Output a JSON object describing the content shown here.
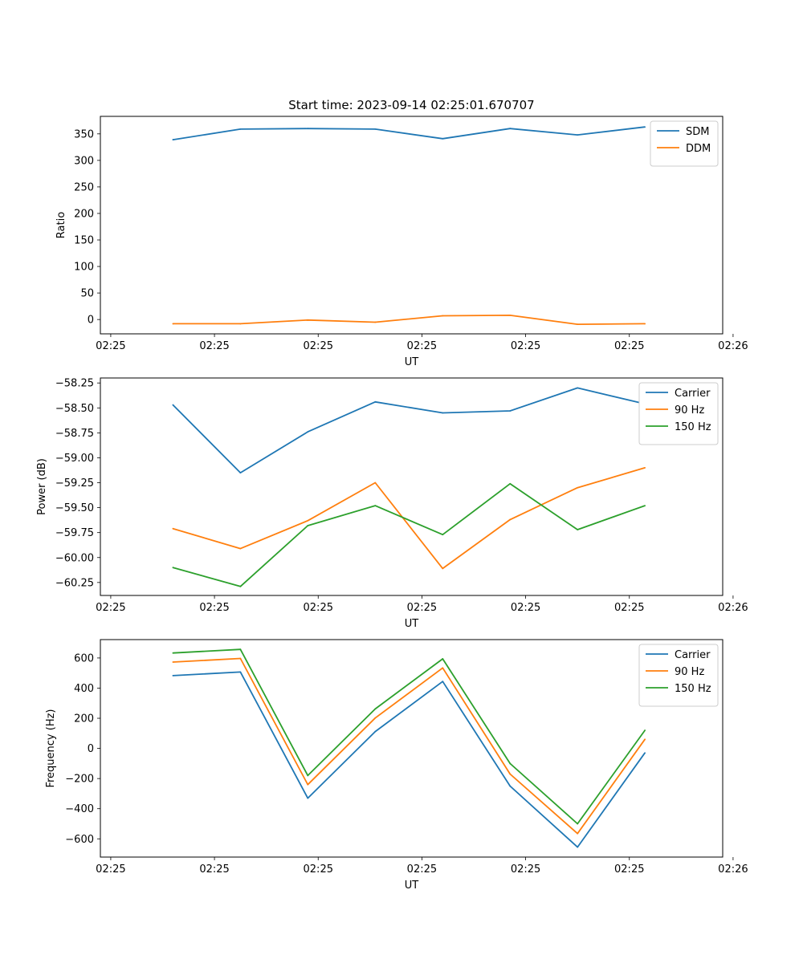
{
  "figure": {
    "title": "Start time: 2023-09-14 02:25:01.670707"
  },
  "chart_data": [
    {
      "type": "line",
      "title": "Start time: 2023-09-14 02:25:01.670707",
      "xlabel": "UT",
      "ylabel": "Ratio",
      "x": [
        0.7,
        1.35,
        2.0,
        2.65,
        3.3,
        3.95,
        4.6,
        5.25
      ],
      "xlim": [
        0,
        6.0
      ],
      "xticks": [
        0.1,
        1.1,
        2.1,
        3.1,
        4.1,
        5.1,
        6.1
      ],
      "xtick_labels": [
        "02:25",
        "02:25",
        "02:25",
        "02:25",
        "02:25",
        "02:25",
        "02:26"
      ],
      "ylim": [
        -27,
        383
      ],
      "yticks": [
        0,
        50,
        100,
        150,
        200,
        250,
        300,
        350
      ],
      "ytick_labels": [
        "0",
        "50",
        "100",
        "150",
        "200",
        "250",
        "300",
        "350"
      ],
      "legend": "upper right",
      "series": [
        {
          "name": "SDM",
          "color": "#1f77b4",
          "values": [
            339,
            359,
            360,
            359,
            341,
            360,
            348,
            363
          ]
        },
        {
          "name": "DDM",
          "color": "#ff7f0e",
          "values": [
            -8,
            -8,
            -1,
            -5,
            7,
            8,
            -9,
            -8
          ]
        }
      ]
    },
    {
      "type": "line",
      "title": "",
      "xlabel": "UT",
      "ylabel": "Power (dB)",
      "x": [
        0.7,
        1.35,
        2.0,
        2.65,
        3.3,
        3.95,
        4.6,
        5.25
      ],
      "xlim": [
        0,
        6.0
      ],
      "xticks": [
        0.1,
        1.1,
        2.1,
        3.1,
        4.1,
        5.1,
        6.1
      ],
      "xtick_labels": [
        "02:25",
        "02:25",
        "02:25",
        "02:25",
        "02:25",
        "02:25",
        "02:26"
      ],
      "ylim": [
        -60.38,
        -58.2
      ],
      "yticks": [
        -60.25,
        -60.0,
        -59.75,
        -59.5,
        -59.25,
        -59.0,
        -58.75,
        -58.5,
        -58.25
      ],
      "ytick_labels": [
        "−60.25",
        "−60.00",
        "−59.75",
        "−59.50",
        "−59.25",
        "−59.00",
        "−58.75",
        "−58.50",
        "−58.25"
      ],
      "legend": "upper right",
      "series": [
        {
          "name": "Carrier",
          "color": "#1f77b4",
          "values": [
            -58.47,
            -59.15,
            -58.74,
            -58.44,
            -58.55,
            -58.53,
            -58.3,
            -58.46
          ]
        },
        {
          "name": "90 Hz",
          "color": "#ff7f0e",
          "values": [
            -59.71,
            -59.91,
            -59.63,
            -59.25,
            -60.11,
            -59.62,
            -59.3,
            -59.1
          ]
        },
        {
          "name": "150 Hz",
          "color": "#2ca02c",
          "values": [
            -60.1,
            -60.29,
            -59.68,
            -59.48,
            -59.77,
            -59.26,
            -59.72,
            -59.48
          ]
        }
      ]
    },
    {
      "type": "line",
      "title": "",
      "xlabel": "UT",
      "ylabel": "Frequency (Hz)",
      "x": [
        0.7,
        1.35,
        2.0,
        2.65,
        3.3,
        3.95,
        4.6,
        5.25
      ],
      "xlim": [
        0,
        6.0
      ],
      "xticks": [
        0.1,
        1.1,
        2.1,
        3.1,
        4.1,
        5.1,
        6.1
      ],
      "xtick_labels": [
        "02:25",
        "02:25",
        "02:25",
        "02:25",
        "02:25",
        "02:25",
        "02:26"
      ],
      "ylim": [
        -721,
        722
      ],
      "yticks": [
        -600,
        -400,
        -200,
        0,
        200,
        400,
        600
      ],
      "ytick_labels": [
        "−600",
        "−400",
        "−200",
        "0",
        "200",
        "400",
        "600"
      ],
      "legend": "upper right",
      "series": [
        {
          "name": "Carrier",
          "color": "#1f77b4",
          "values": [
            483,
            507,
            -330,
            112,
            444,
            -250,
            -655,
            -30
          ]
        },
        {
          "name": "90 Hz",
          "color": "#ff7f0e",
          "values": [
            573,
            597,
            -240,
            202,
            534,
            -170,
            -565,
            60
          ]
        },
        {
          "name": "150 Hz",
          "color": "#2ca02c",
          "values": [
            633,
            657,
            -180,
            262,
            594,
            -100,
            -500,
            120
          ]
        }
      ]
    }
  ]
}
